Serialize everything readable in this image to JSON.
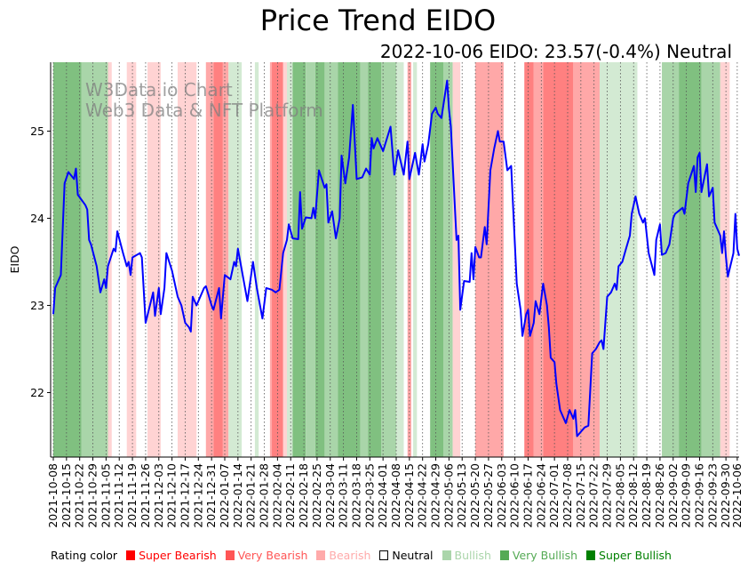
{
  "chart_data": {
    "type": "line",
    "title": "Price Trend EIDO",
    "subtitle": "2022-10-06 EIDO: 23.57(-0.4%) Neutral",
    "ylabel": "EIDO",
    "xlabel": "",
    "x_unit": "days since 2021-10-08",
    "xlim": [
      0,
      364
    ],
    "ylim": [
      21.26,
      25.79
    ],
    "yticks": [
      22,
      23,
      24,
      25
    ],
    "xtick_days": [
      0,
      7,
      14,
      21,
      28,
      35,
      42,
      49,
      56,
      63,
      70,
      77,
      84,
      91,
      98,
      105,
      112,
      119,
      126,
      133,
      140,
      147,
      154,
      161,
      168,
      175,
      182,
      189,
      196,
      203,
      210,
      217,
      224,
      231,
      238,
      245,
      252,
      259,
      266,
      273,
      280,
      287,
      294,
      301,
      308,
      315,
      322,
      329,
      336,
      343,
      350,
      357,
      363
    ],
    "xtick_labels": [
      "2021-10-08",
      "2021-10-15",
      "2021-10-22",
      "2021-10-29",
      "2021-11-05",
      "2021-11-12",
      "2021-11-19",
      "2021-11-26",
      "2021-12-03",
      "2021-12-10",
      "2021-12-17",
      "2021-12-24",
      "2021-12-31",
      "2022-01-07",
      "2022-01-14",
      "2022-01-21",
      "2022-01-28",
      "2022-02-04",
      "2022-02-11",
      "2022-02-18",
      "2022-02-25",
      "2022-03-04",
      "2022-03-11",
      "2022-03-18",
      "2022-03-25",
      "2022-04-01",
      "2022-04-08",
      "2022-04-15",
      "2022-04-22",
      "2022-04-29",
      "2022-05-06",
      "2022-05-13",
      "2022-05-20",
      "2022-05-27",
      "2022-06-03",
      "2022-06-10",
      "2022-06-17",
      "2022-06-24",
      "2022-07-01",
      "2022-07-08",
      "2022-07-15",
      "2022-07-22",
      "2022-07-29",
      "2022-08-05",
      "2022-08-12",
      "2022-08-19",
      "2022-08-26",
      "2022-09-02",
      "2022-09-09",
      "2022-09-16",
      "2022-09-23",
      "2022-09-30",
      "2022-10-06"
    ],
    "series": [
      {
        "name": "EIDO",
        "color": "#0000ff",
        "points": [
          [
            0,
            22.9
          ],
          [
            1,
            23.2
          ],
          [
            4,
            23.35
          ],
          [
            6,
            24.4
          ],
          [
            8,
            24.53
          ],
          [
            11,
            24.45
          ],
          [
            12,
            24.57
          ],
          [
            13,
            24.27
          ],
          [
            17,
            24.15
          ],
          [
            18,
            24.1
          ],
          [
            19,
            23.75
          ],
          [
            20,
            23.7
          ],
          [
            23,
            23.45
          ],
          [
            25,
            23.15
          ],
          [
            27,
            23.3
          ],
          [
            28,
            23.2
          ],
          [
            29,
            23.45
          ],
          [
            32,
            23.65
          ],
          [
            33,
            23.62
          ],
          [
            34,
            23.85
          ],
          [
            37,
            23.6
          ],
          [
            39,
            23.45
          ],
          [
            40,
            23.5
          ],
          [
            41,
            23.35
          ],
          [
            42,
            23.55
          ],
          [
            46,
            23.6
          ],
          [
            47,
            23.55
          ],
          [
            49,
            22.8
          ],
          [
            53,
            23.15
          ],
          [
            54,
            22.88
          ],
          [
            56,
            23.2
          ],
          [
            57,
            22.9
          ],
          [
            59,
            23.2
          ],
          [
            60,
            23.6
          ],
          [
            63,
            23.4
          ],
          [
            66,
            23.1
          ],
          [
            68,
            23.0
          ],
          [
            70,
            22.8
          ],
          [
            72,
            22.75
          ],
          [
            73,
            22.7
          ],
          [
            74,
            23.1
          ],
          [
            76,
            23.0
          ],
          [
            80,
            23.2
          ],
          [
            81,
            23.22
          ],
          [
            84,
            23.0
          ],
          [
            85,
            22.95
          ],
          [
            88,
            23.2
          ],
          [
            89,
            22.85
          ],
          [
            91,
            23.35
          ],
          [
            94,
            23.3
          ],
          [
            96,
            23.5
          ],
          [
            97,
            23.45
          ],
          [
            98,
            23.65
          ],
          [
            103,
            23.05
          ],
          [
            106,
            23.5
          ],
          [
            108,
            23.2
          ],
          [
            111,
            22.85
          ],
          [
            113,
            23.2
          ],
          [
            116,
            23.18
          ],
          [
            118,
            23.15
          ],
          [
            120,
            23.18
          ],
          [
            122,
            23.6
          ],
          [
            124,
            23.75
          ],
          [
            125,
            23.93
          ],
          [
            127,
            23.77
          ],
          [
            130,
            23.76
          ],
          [
            131,
            24.3
          ],
          [
            132,
            23.88
          ],
          [
            134,
            24.01
          ],
          [
            137,
            24.0
          ],
          [
            138,
            24.12
          ],
          [
            139,
            24.0
          ],
          [
            141,
            24.55
          ],
          [
            144,
            24.35
          ],
          [
            145,
            24.39
          ],
          [
            146,
            23.95
          ],
          [
            148,
            24.08
          ],
          [
            150,
            23.77
          ],
          [
            152,
            24.0
          ],
          [
            153,
            24.72
          ],
          [
            155,
            24.4
          ],
          [
            157,
            24.7
          ],
          [
            159,
            25.3
          ],
          [
            161,
            24.45
          ],
          [
            164,
            24.47
          ],
          [
            166,
            24.57
          ],
          [
            168,
            24.5
          ],
          [
            169,
            24.92
          ],
          [
            170,
            24.8
          ],
          [
            172,
            24.92
          ],
          [
            175,
            24.77
          ],
          [
            179,
            25.05
          ],
          [
            181,
            24.5
          ],
          [
            183,
            24.78
          ],
          [
            186,
            24.5
          ],
          [
            188,
            24.88
          ],
          [
            189,
            24.45
          ],
          [
            192,
            24.75
          ],
          [
            194,
            24.5
          ],
          [
            196,
            24.85
          ],
          [
            197,
            24.65
          ],
          [
            199,
            24.85
          ],
          [
            201,
            25.2
          ],
          [
            203,
            25.27
          ],
          [
            204,
            25.2
          ],
          [
            206,
            25.15
          ],
          [
            209,
            25.58
          ],
          [
            210,
            25.25
          ],
          [
            211,
            25.05
          ],
          [
            214,
            23.75
          ],
          [
            215,
            23.8
          ],
          [
            216,
            22.95
          ],
          [
            218,
            23.28
          ],
          [
            221,
            23.27
          ],
          [
            222,
            23.6
          ],
          [
            223,
            23.3
          ],
          [
            224,
            23.67
          ],
          [
            226,
            23.55
          ],
          [
            227,
            23.55
          ],
          [
            229,
            23.9
          ],
          [
            230,
            23.7
          ],
          [
            232,
            24.55
          ],
          [
            234,
            24.8
          ],
          [
            236,
            25.0
          ],
          [
            237,
            24.88
          ],
          [
            239,
            24.88
          ],
          [
            241,
            24.55
          ],
          [
            243,
            24.6
          ],
          [
            246,
            23.25
          ],
          [
            248,
            22.95
          ],
          [
            249,
            22.65
          ],
          [
            251,
            22.9
          ],
          [
            252,
            22.95
          ],
          [
            253,
            22.65
          ],
          [
            255,
            22.8
          ],
          [
            256,
            23.05
          ],
          [
            258,
            22.9
          ],
          [
            260,
            23.25
          ],
          [
            262,
            23.0
          ],
          [
            263,
            22.75
          ],
          [
            264,
            22.4
          ],
          [
            266,
            22.35
          ],
          [
            267,
            22.1
          ],
          [
            269,
            21.8
          ],
          [
            272,
            21.65
          ],
          [
            274,
            21.8
          ],
          [
            276,
            21.7
          ],
          [
            277,
            21.8
          ],
          [
            278,
            21.5
          ],
          [
            280,
            21.55
          ],
          [
            282,
            21.6
          ],
          [
            284,
            21.62
          ],
          [
            286,
            22.45
          ],
          [
            288,
            22.5
          ],
          [
            290,
            22.58
          ],
          [
            291,
            22.6
          ],
          [
            292,
            22.5
          ],
          [
            294,
            23.1
          ],
          [
            296,
            23.15
          ],
          [
            298,
            23.25
          ],
          [
            299,
            23.18
          ],
          [
            300,
            23.45
          ],
          [
            302,
            23.5
          ],
          [
            304,
            23.65
          ],
          [
            306,
            23.8
          ],
          [
            307,
            24.05
          ],
          [
            309,
            24.25
          ],
          [
            311,
            24.05
          ],
          [
            313,
            23.95
          ],
          [
            314,
            24.0
          ],
          [
            316,
            23.6
          ],
          [
            319,
            23.35
          ],
          [
            320,
            23.75
          ],
          [
            322,
            23.93
          ],
          [
            323,
            23.58
          ],
          [
            325,
            23.6
          ],
          [
            327,
            23.7
          ],
          [
            329,
            24.0
          ],
          [
            330,
            24.05
          ],
          [
            334,
            24.12
          ],
          [
            335,
            24.05
          ],
          [
            337,
            24.4
          ],
          [
            340,
            24.6
          ],
          [
            341,
            24.3
          ],
          [
            342,
            24.7
          ],
          [
            343,
            24.75
          ],
          [
            344,
            24.3
          ],
          [
            347,
            24.62
          ],
          [
            348,
            24.25
          ],
          [
            350,
            24.35
          ],
          [
            351,
            23.95
          ],
          [
            354,
            23.8
          ],
          [
            355,
            23.6
          ],
          [
            356,
            23.85
          ],
          [
            357,
            23.55
          ],
          [
            358,
            23.33
          ],
          [
            361,
            23.6
          ],
          [
            362,
            24.05
          ],
          [
            363,
            23.65
          ],
          [
            364,
            23.57
          ]
        ]
      }
    ],
    "rating_bands": [
      [
        0,
        15,
        "super_bullish"
      ],
      [
        15,
        29,
        "very_bullish"
      ],
      [
        29,
        31,
        "bearish"
      ],
      [
        39,
        44,
        "bearish"
      ],
      [
        50,
        57,
        "bearish"
      ],
      [
        66,
        76,
        "bearish"
      ],
      [
        81,
        85,
        "very_bearish"
      ],
      [
        85,
        90,
        "super_bearish"
      ],
      [
        90,
        93,
        "very_bearish"
      ],
      [
        93,
        100,
        "bullish"
      ],
      [
        107,
        109,
        "bullish"
      ],
      [
        115,
        116,
        "very_bearish"
      ],
      [
        116,
        122,
        "super_bearish"
      ],
      [
        122,
        124,
        "bearish"
      ],
      [
        124,
        127,
        "bullish"
      ],
      [
        127,
        134,
        "super_bullish"
      ],
      [
        134,
        139,
        "very_bullish"
      ],
      [
        139,
        144,
        "super_bullish"
      ],
      [
        144,
        151,
        "very_bullish"
      ],
      [
        151,
        163,
        "super_bullish"
      ],
      [
        163,
        167,
        "very_bullish"
      ],
      [
        167,
        174,
        "super_bullish"
      ],
      [
        174,
        182,
        "very_bullish"
      ],
      [
        182,
        186,
        "bullish"
      ],
      [
        188,
        190,
        "very_bearish"
      ],
      [
        191,
        193,
        "bullish"
      ],
      [
        200,
        207,
        "super_bullish"
      ],
      [
        207,
        212,
        "very_bullish"
      ],
      [
        212,
        216,
        "bearish"
      ],
      [
        224,
        239,
        "very_bearish"
      ],
      [
        250,
        255,
        "super_bearish"
      ],
      [
        255,
        260,
        "very_bearish"
      ],
      [
        260,
        276,
        "super_bearish"
      ],
      [
        276,
        290,
        "very_bearish"
      ],
      [
        290,
        310,
        "bullish"
      ],
      [
        323,
        332,
        "very_bullish"
      ],
      [
        332,
        344,
        "super_bullish"
      ],
      [
        344,
        354,
        "very_bullish"
      ],
      [
        354,
        359,
        "bearish"
      ]
    ],
    "band_colors": {
      "super_bearish": "#ff8080",
      "very_bearish": "#ffa8a8",
      "bearish": "#ffd3d3",
      "neutral": "#ffffff",
      "bullish": "#d3ead3",
      "very_bullish": "#a9d5a9",
      "super_bullish": "#80c080"
    },
    "watermark": [
      "W3Data.io Chart",
      "Web3 Data & NFT Platform"
    ],
    "legend": {
      "title": "Rating color",
      "items": [
        {
          "label": "Super Bearish",
          "color": "#ff0000"
        },
        {
          "label": "Very Bearish",
          "color": "#ff5555"
        },
        {
          "label": "Bearish",
          "color": "#ffaaaa"
        },
        {
          "label": "Neutral",
          "color": "#ffffff"
        },
        {
          "label": "Bullish",
          "color": "#aad5aa"
        },
        {
          "label": "Very Bullish",
          "color": "#55aa55"
        },
        {
          "label": "Super Bullish",
          "color": "#008000"
        }
      ]
    }
  }
}
